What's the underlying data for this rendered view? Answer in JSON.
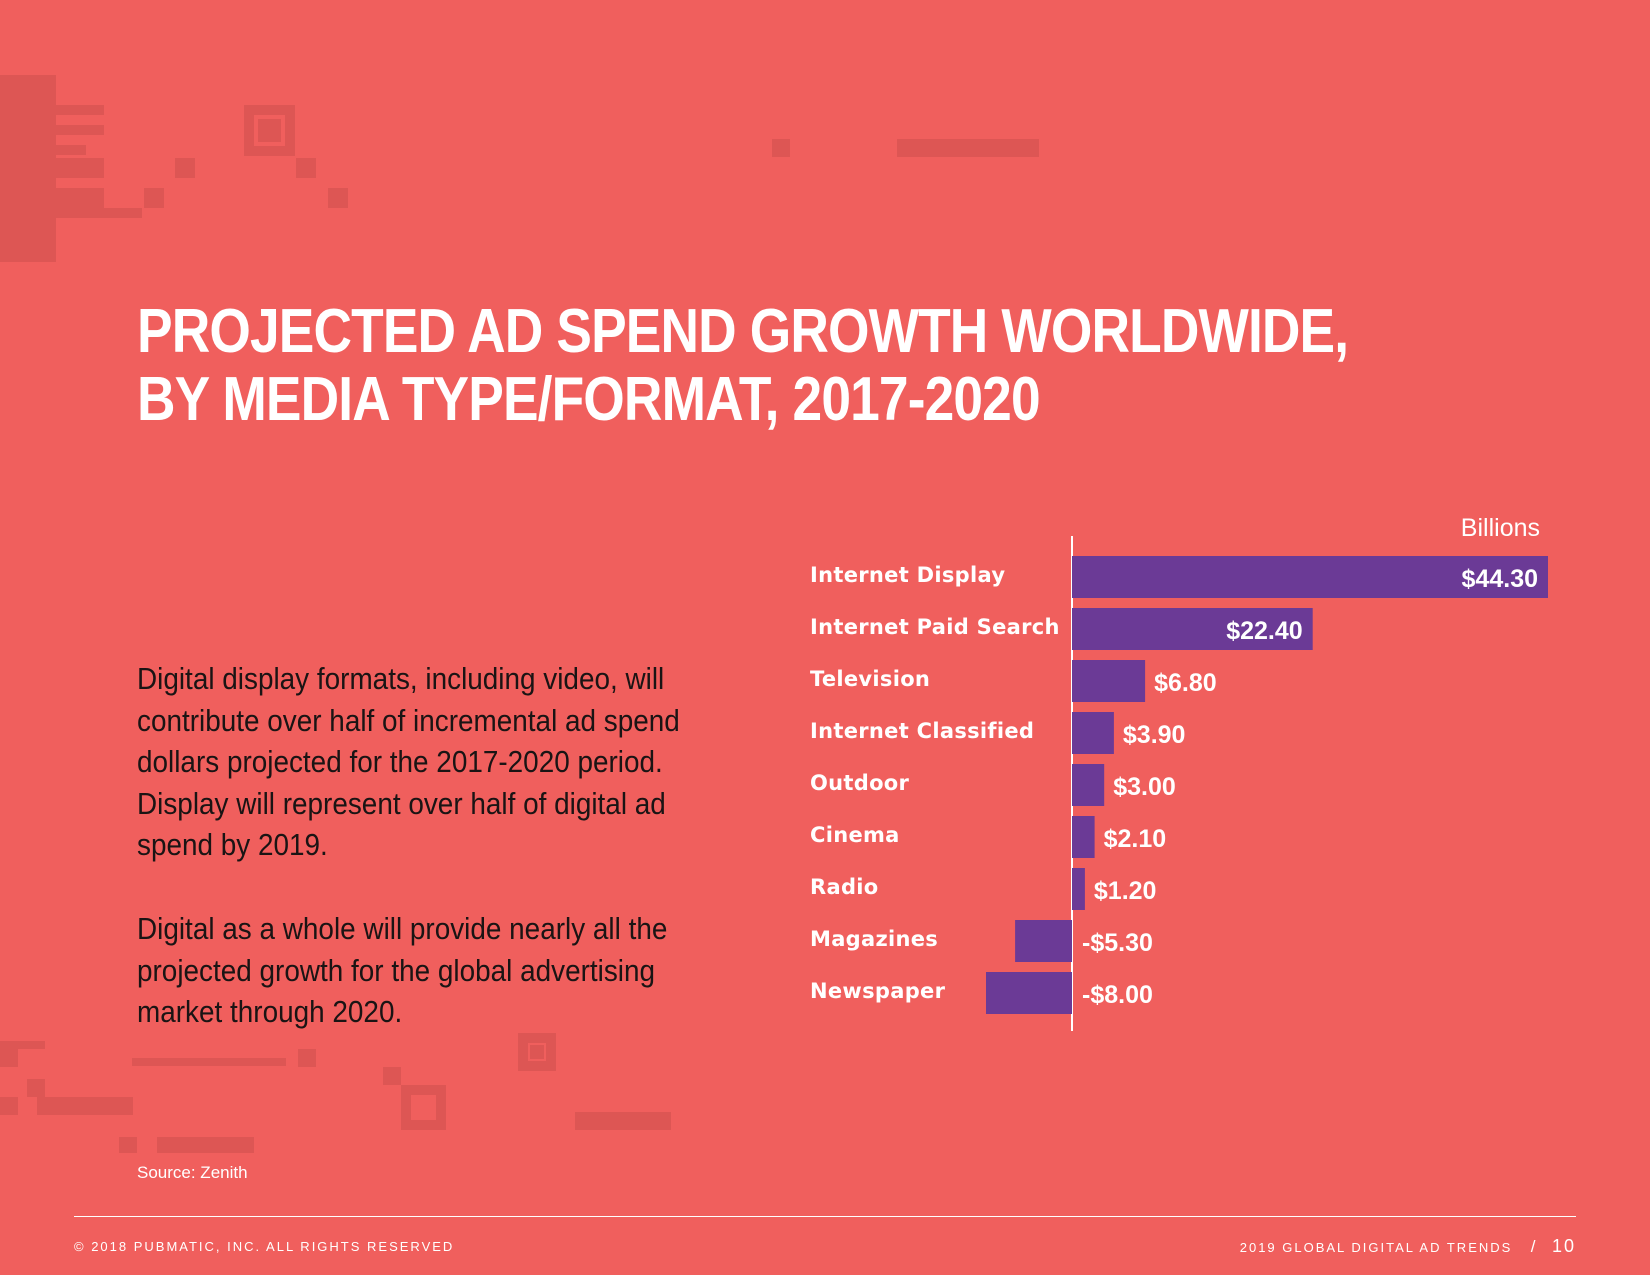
{
  "title_line1": "PROJECTED AD SPEND GROWTH WORLDWIDE,",
  "title_line2": "BY MEDIA TYPE/FORMAT, 2017-2020",
  "body": {
    "paragraph1": "Digital display formats, including video, will contribute over half of incremental ad spend dollars projected for the 2017-2020 period. Display will represent over half of digital ad spend by 2019.",
    "paragraph2": "Digital as a whole will provide nearly all the projected growth for the global advertising market through 2020."
  },
  "source": "Source: Zenith",
  "footer": {
    "copyright": "© 2018 PUBMATIC, INC. ALL RIGHTS RESERVED",
    "report": "2019 GLOBAL DIGITAL AD TRENDS",
    "separator": "/",
    "page": "10"
  },
  "colors": {
    "background": "#f05f5d",
    "bar": "#6b3a96",
    "text": "#ffffff",
    "body_text": "#1a1414",
    "decoration": "#dd5654"
  },
  "chart_data": {
    "type": "bar",
    "orientation": "horizontal",
    "unit_label": "Billions",
    "categories": [
      "Internet Display",
      "Internet Paid Search",
      "Television",
      "Internet Classified",
      "Outdoor",
      "Cinema",
      "Radio",
      "Magazines",
      "Newspaper"
    ],
    "values": [
      44.3,
      22.4,
      6.8,
      3.9,
      3.0,
      2.1,
      1.2,
      -5.3,
      -8.0
    ],
    "value_labels": [
      "$44.30",
      "$22.40",
      "$6.80",
      "$3.90",
      "$3.00",
      "$2.10",
      "$1.20",
      "-$5.30",
      "-$8.00"
    ],
    "xlim": [
      -8,
      44.3
    ],
    "grid": false,
    "bar_color": "#6b3a96"
  }
}
